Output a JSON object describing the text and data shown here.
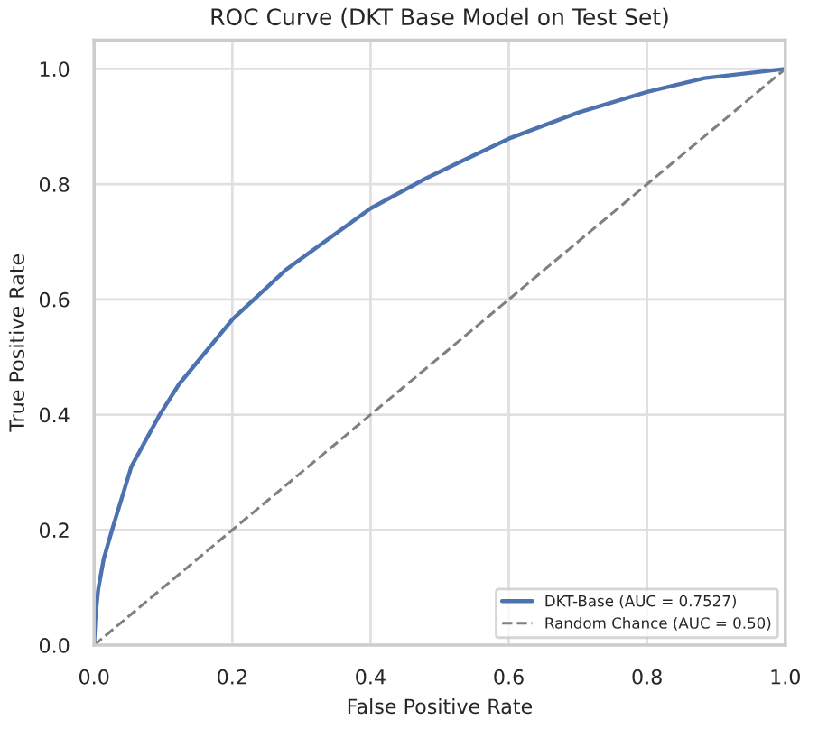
{
  "chart_data": {
    "type": "line",
    "title": "ROC Curve (DKT Base Model on Test Set)",
    "xlabel": "False Positive Rate",
    "ylabel": "True Positive Rate",
    "series": [
      {
        "name": "DKT-Base (AUC = 0.7527)",
        "color": "#4c72b0",
        "line_style": "solid",
        "x": [
          0,
          0.002,
          0.006,
          0.014,
          0.026,
          0.054,
          0.095,
          0.123,
          0.2,
          0.277,
          0.4,
          0.48,
          0.6,
          0.7,
          0.8,
          0.883,
          1.0
        ],
        "values": [
          0,
          0.048,
          0.097,
          0.15,
          0.2,
          0.31,
          0.4,
          0.453,
          0.565,
          0.651,
          0.758,
          0.81,
          0.879,
          0.924,
          0.96,
          0.984,
          1.0
        ]
      },
      {
        "name": "Random Chance (AUC = 0.50)",
        "color": "#808080",
        "line_style": "dashed",
        "x": [
          0,
          1.0
        ],
        "values": [
          0,
          1.0
        ]
      }
    ],
    "xlim": [
      0,
      1.0
    ],
    "ylim": [
      0,
      1.05
    ],
    "xticks": [
      {
        "value": 0,
        "label": "0.0"
      },
      0.2,
      0.4,
      0.6,
      0.8,
      {
        "value": 1,
        "label": "1.0"
      }
    ],
    "yticks": [
      {
        "value": 0,
        "label": "0.0"
      },
      0.2,
      0.4,
      0.6,
      0.8,
      {
        "value": 1,
        "label": "1.0"
      }
    ],
    "grid": true,
    "legend": "lower right",
    "marker": "none"
  }
}
